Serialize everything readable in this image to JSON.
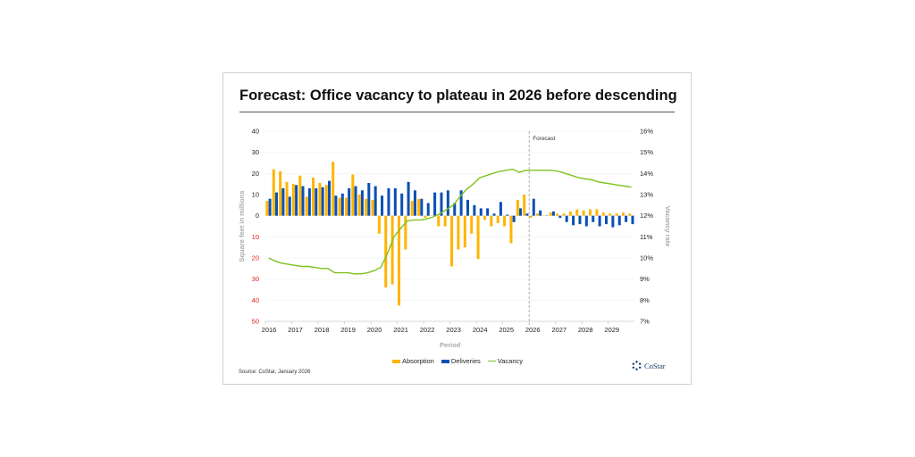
{
  "title": "Forecast: Office vacancy to plateau in 2026 before descending",
  "source": "Source: CoStar, January 2026",
  "logo_text": "CoStar",
  "colors": {
    "absorption": "#FFB400",
    "deliveries": "#0A4FB5",
    "vacancy": "#7DC21E",
    "negative_tick": "#E02020"
  },
  "chart_data": {
    "type": "bar+line",
    "xlabel": "Period",
    "ylabel_left": "Square feet in millions",
    "ylabel_right": "Vacancy rate",
    "annotation": "Forecast",
    "forecast_start": "2026",
    "ylim_left": [
      -50,
      40
    ],
    "ylim_right": [
      7,
      16
    ],
    "left_ticks": [
      40,
      30,
      20,
      10,
      0,
      -10,
      -20,
      -30,
      -40,
      -50
    ],
    "left_tick_labels": [
      "40",
      "30",
      "20",
      "10",
      "0",
      "10",
      "20",
      "30",
      "40",
      "50"
    ],
    "right_ticks": [
      "16%",
      "15%",
      "14%",
      "13%",
      "12%",
      "11%",
      "10%",
      "9%",
      "8%",
      "7%"
    ],
    "x_tick_labels": [
      "2016",
      "2017",
      "2018",
      "2019",
      "2020",
      "2021",
      "2022",
      "2023",
      "2024",
      "2025",
      "2026",
      "2027",
      "2028",
      "2029"
    ],
    "frequency": "quarterly",
    "legend": "bottom",
    "series": [
      {
        "name": "Absorption",
        "type": "bar",
        "axis": "left",
        "values": [
          7,
          22,
          21,
          16,
          15,
          19,
          9,
          18,
          15.5,
          14.5,
          25.5,
          8.5,
          8.5,
          19.5,
          10,
          8,
          7.5,
          -8.5,
          -34,
          -32.5,
          -42.5,
          -16,
          7,
          8,
          -1,
          0,
          -5,
          -5,
          -24,
          -16,
          -15,
          -8.5,
          -20.5,
          -2,
          -5,
          -3.5,
          -5,
          -13,
          7.5,
          10,
          -1,
          1,
          0,
          1.5,
          1,
          1,
          2,
          3,
          2.5,
          3,
          3,
          1.5,
          1,
          1,
          1.5,
          1
        ]
      },
      {
        "name": "Deliveries",
        "type": "bar",
        "axis": "left",
        "values": [
          8,
          11,
          13,
          9,
          14.5,
          14,
          13,
          13,
          13.5,
          16.5,
          9.5,
          10.5,
          13,
          14,
          12,
          15.5,
          14,
          9.5,
          13,
          13,
          10.5,
          16,
          12,
          8,
          6,
          11,
          11,
          12,
          6,
          12,
          7.5,
          5,
          3.5,
          3.5,
          1,
          6.5,
          0.5,
          -3,
          3.5,
          1,
          8,
          2.5,
          0,
          2,
          -1,
          -3,
          -4.5,
          -4,
          -5,
          -3,
          -5,
          -4,
          -5.5,
          -4.5,
          -3,
          -4
        ]
      },
      {
        "name": "Vacancy",
        "type": "line",
        "axis": "right",
        "values": [
          10.0,
          9.85,
          9.75,
          9.7,
          9.65,
          9.6,
          9.6,
          9.55,
          9.5,
          9.5,
          9.3,
          9.3,
          9.3,
          9.25,
          9.25,
          9.3,
          9.4,
          9.55,
          10.2,
          11.0,
          11.4,
          11.75,
          11.8,
          11.8,
          11.85,
          11.95,
          12.1,
          12.3,
          12.5,
          12.9,
          13.25,
          13.5,
          13.8,
          13.9,
          14.0,
          14.1,
          14.15,
          14.2,
          14.05,
          14.15,
          14.15,
          14.15,
          14.15,
          14.15,
          14.1,
          14.0,
          13.9,
          13.8,
          13.75,
          13.7,
          13.6,
          13.55,
          13.5,
          13.45,
          13.4,
          13.35
        ]
      }
    ]
  }
}
